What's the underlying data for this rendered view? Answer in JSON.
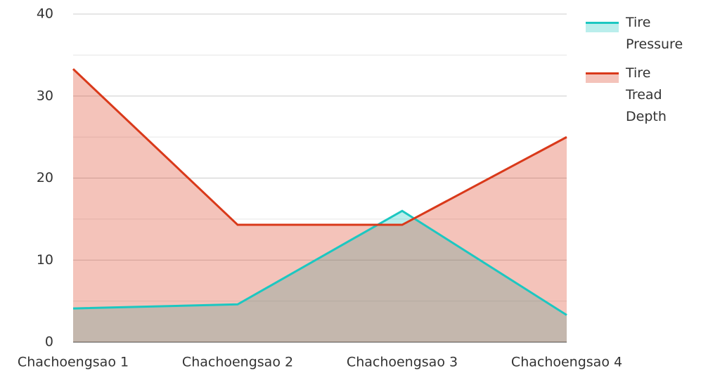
{
  "chart_data": {
    "type": "area",
    "categories": [
      "Chachoengsao 1",
      "Chachoengsao 2",
      "Chachoengsao 3",
      "Chachoengsao 4"
    ],
    "series": [
      {
        "name": "Tire Pressure",
        "color": "#1cc7c1",
        "values": [
          4.1,
          4.6,
          16,
          3.3
        ]
      },
      {
        "name": "Tire Tread Depth",
        "color": "#d9391a",
        "values": [
          33.3,
          14.3,
          14.3,
          25
        ]
      }
    ],
    "ylim": [
      0,
      40
    ],
    "yticks": [
      0,
      10,
      20,
      30,
      40
    ],
    "minor_yticks": [
      5,
      15,
      25,
      35
    ],
    "grid": true,
    "legend": "right"
  }
}
